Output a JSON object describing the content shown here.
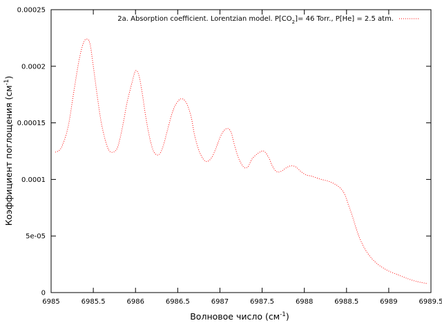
{
  "chart_data": {
    "type": "line",
    "title": "",
    "xlabel": "Волновое число (см⁻¹)",
    "ylabel": "Коэффициент поглощения (см⁻¹)",
    "xlim": [
      6985,
      6989.5
    ],
    "ylim": [
      0,
      0.00025
    ],
    "x_ticks": [
      6985,
      6985.5,
      6986,
      6986.5,
      6987,
      6987.5,
      6988,
      6988.5,
      6989,
      6989.5
    ],
    "x_tick_labels": [
      "6985",
      "6985.5",
      "6986",
      "6986.5",
      "6987",
      "6987.5",
      "6988",
      "6988.5",
      "6989",
      "6989.5"
    ],
    "y_ticks": [
      0,
      5e-05,
      0.0001,
      0.00015,
      0.0002,
      0.00025
    ],
    "y_tick_labels": [
      "0",
      "5e-05",
      "0.0001",
      "0.00015",
      "0.0002",
      "0.00025"
    ],
    "grid": false,
    "legend_position": "top-right",
    "series": [
      {
        "name": "2a. Absorption coefficient. Lorentzian model. P[CO₂]= 46 Torr., P[He] = 2.5 atm.",
        "color": "#ff0000",
        "style": "dotted",
        "x": [
          6985.05,
          6985.12,
          6985.2,
          6985.27,
          6985.33,
          6985.38,
          6985.42,
          6985.46,
          6985.5,
          6985.55,
          6985.6,
          6985.67,
          6985.73,
          6985.79,
          6985.85,
          6985.9,
          6985.96,
          6986.0,
          6986.04,
          6986.08,
          6986.12,
          6986.17,
          6986.22,
          6986.28,
          6986.33,
          6986.38,
          6986.45,
          6986.53,
          6986.6,
          6986.66,
          6986.7,
          6986.76,
          6986.83,
          6986.9,
          6986.96,
          6987.02,
          6987.08,
          6987.13,
          6987.17,
          6987.22,
          6987.28,
          6987.33,
          6987.38,
          6987.45,
          6987.52,
          6987.58,
          6987.62,
          6987.67,
          6987.72,
          6987.78,
          6987.84,
          6987.9,
          6987.96,
          6988.02,
          6988.08,
          6988.12,
          6988.2,
          6988.3,
          6988.4,
          6988.47,
          6988.52,
          6988.58,
          6988.63,
          6988.68,
          6988.73,
          6988.8,
          6988.87,
          6988.93,
          6989.0,
          6989.1,
          6989.2,
          6989.32,
          6989.45
        ],
        "y": [
          0.000124,
          0.000128,
          0.000146,
          0.000178,
          0.000205,
          0.00022,
          0.000224,
          0.00022,
          0.0002,
          0.000172,
          0.000148,
          0.000128,
          0.000124,
          0.000129,
          0.000148,
          0.000168,
          0.000186,
          0.000196,
          0.000192,
          0.000176,
          0.000156,
          0.000136,
          0.000124,
          0.000122,
          0.00013,
          0.000144,
          0.000162,
          0.000171,
          0.000168,
          0.000155,
          0.000139,
          0.000124,
          0.000116,
          0.000119,
          0.000129,
          0.00014,
          0.000145,
          0.000142,
          0.000131,
          0.000119,
          0.000111,
          0.000111,
          0.000118,
          0.000123,
          0.000125,
          0.000119,
          0.000112,
          0.000107,
          0.000107,
          0.00011,
          0.000112,
          0.000111,
          0.000107,
          0.000104,
          0.000103,
          0.000102,
          0.0001,
          9.8e-05,
          9.4e-05,
          8.8e-05,
          7.8e-05,
          6.5e-05,
          5.3e-05,
          4.4e-05,
          3.7e-05,
          3e-05,
          2.5e-05,
          2.2e-05,
          1.9e-05,
          1.6e-05,
          1.3e-05,
          1e-05,
          8e-06
        ]
      }
    ]
  }
}
